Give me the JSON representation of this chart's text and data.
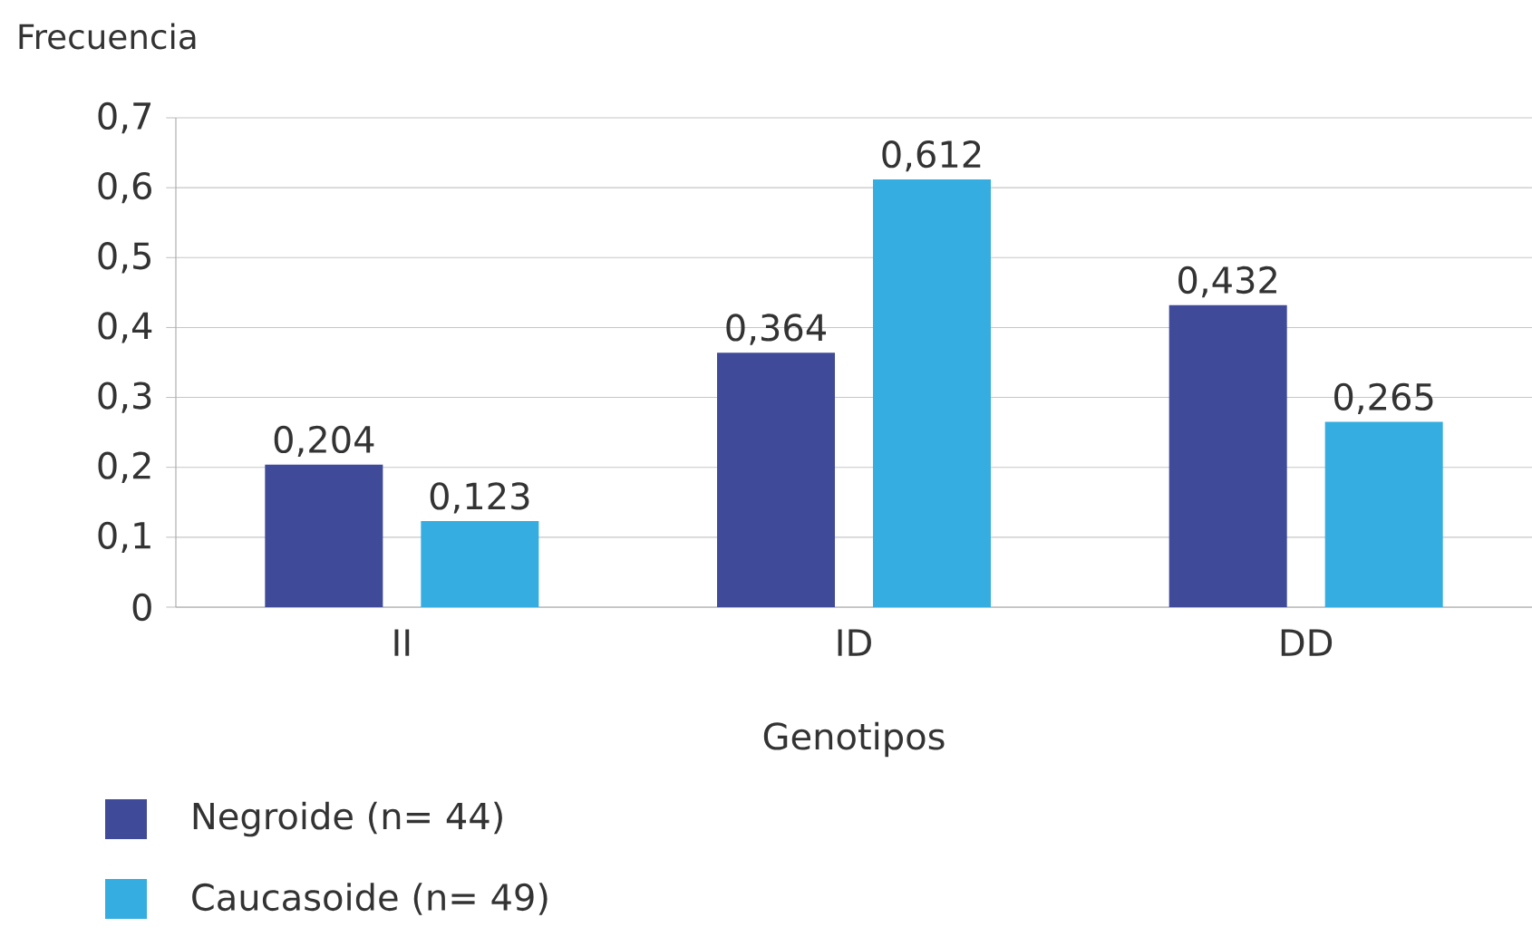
{
  "chart_data": {
    "type": "bar",
    "ylabel": "Frecuencia",
    "xlabel": "Genotipos",
    "categories": [
      "II",
      "ID",
      "DD"
    ],
    "series": [
      {
        "name": "Negroide (n= 44)",
        "color": "#3f4a98",
        "values": [
          0.204,
          0.364,
          0.432
        ],
        "value_labels": [
          "0,204",
          "0,364",
          "0,432"
        ]
      },
      {
        "name": "Caucasoide (n= 49)",
        "color": "#36ade0",
        "values": [
          0.123,
          0.612,
          0.265
        ],
        "value_labels": [
          "0,123",
          "0,612",
          "0,265"
        ]
      }
    ],
    "ylim": [
      0,
      0.7
    ],
    "yticks": [
      {
        "value": 0,
        "label": "0"
      },
      {
        "value": 0.1,
        "label": "0,1"
      },
      {
        "value": 0.2,
        "label": "0,2"
      },
      {
        "value": 0.3,
        "label": "0,3"
      },
      {
        "value": 0.4,
        "label": "0,4"
      },
      {
        "value": 0.5,
        "label": "0,5"
      },
      {
        "value": 0.6,
        "label": "0,6"
      },
      {
        "value": 0.7,
        "label": "0,7"
      }
    ],
    "grid": "y",
    "legend": "bottom"
  }
}
